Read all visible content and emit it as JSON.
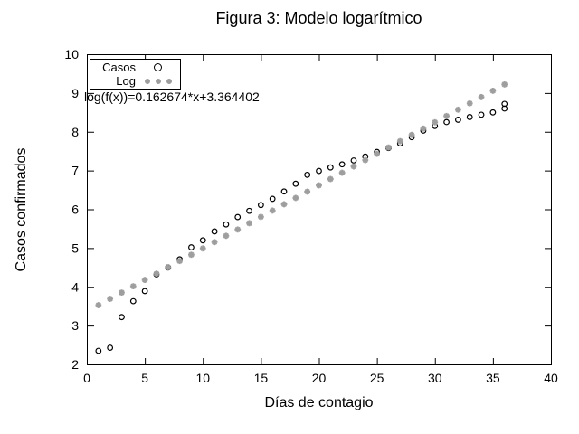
{
  "chart_data": {
    "type": "scatter",
    "title": "Figura 3: Modelo logarítmico",
    "xlabel": "Días de contagio",
    "ylabel": "Casos confirmados",
    "annotation": "log(f(x))=0.162674*x+3.364402",
    "xlim": [
      0,
      40
    ],
    "ylim": [
      2,
      10
    ],
    "x_ticks": [
      0,
      5,
      10,
      15,
      20,
      25,
      30,
      35,
      40
    ],
    "y_ticks": [
      2,
      3,
      4,
      5,
      6,
      7,
      8,
      9,
      10
    ],
    "grid": false,
    "legend_position": "top-left",
    "colors": {
      "casos": "#000000",
      "log": "#9e9e9e",
      "frame": "#000000"
    },
    "fit": {
      "slope": 0.162674,
      "intercept": 3.364402
    },
    "series": [
      {
        "name": "Casos",
        "marker": "circle",
        "color": "#000000",
        "points": [
          [
            1,
            2.35
          ],
          [
            2,
            2.43
          ],
          [
            3,
            3.22
          ],
          [
            4,
            3.63
          ],
          [
            5,
            3.89
          ],
          [
            6,
            4.32
          ],
          [
            7,
            4.5
          ],
          [
            8,
            4.71
          ],
          [
            9,
            5.02
          ],
          [
            10,
            5.2
          ],
          [
            11,
            5.43
          ],
          [
            12,
            5.61
          ],
          [
            13,
            5.8
          ],
          [
            14,
            5.96
          ],
          [
            15,
            6.11
          ],
          [
            16,
            6.27
          ],
          [
            17,
            6.46
          ],
          [
            18,
            6.66
          ],
          [
            19,
            6.89
          ],
          [
            20,
            6.99
          ],
          [
            21,
            7.08
          ],
          [
            22,
            7.16
          ],
          [
            23,
            7.26
          ],
          [
            24,
            7.36
          ],
          [
            25,
            7.48
          ],
          [
            26,
            7.58
          ],
          [
            27,
            7.7
          ],
          [
            28,
            7.86
          ],
          [
            29,
            8.03
          ],
          [
            30,
            8.15
          ],
          [
            31,
            8.25
          ],
          [
            32,
            8.31
          ],
          [
            33,
            8.38
          ],
          [
            34,
            8.44
          ],
          [
            35,
            8.5
          ],
          [
            36,
            8.6
          ],
          [
            36,
            8.72
          ]
        ]
      },
      {
        "name": "Log",
        "marker": "asterisk",
        "color": "#9e9e9e",
        "points": [
          [
            1,
            3.527
          ],
          [
            2,
            3.69
          ],
          [
            3,
            3.852
          ],
          [
            4,
            4.015
          ],
          [
            5,
            4.178
          ],
          [
            6,
            4.34
          ],
          [
            7,
            4.503
          ],
          [
            8,
            4.666
          ],
          [
            9,
            4.828
          ],
          [
            10,
            4.991
          ],
          [
            11,
            5.154
          ],
          [
            12,
            5.316
          ],
          [
            13,
            5.479
          ],
          [
            14,
            5.642
          ],
          [
            15,
            5.805
          ],
          [
            16,
            5.967
          ],
          [
            17,
            6.13
          ],
          [
            18,
            6.293
          ],
          [
            19,
            6.455
          ],
          [
            20,
            6.618
          ],
          [
            21,
            6.781
          ],
          [
            22,
            6.943
          ],
          [
            23,
            7.106
          ],
          [
            24,
            7.269
          ],
          [
            25,
            7.431
          ],
          [
            26,
            7.594
          ],
          [
            27,
            7.757
          ],
          [
            28,
            7.919
          ],
          [
            29,
            8.082
          ],
          [
            30,
            8.245
          ],
          [
            31,
            8.407
          ],
          [
            32,
            8.57
          ],
          [
            33,
            8.733
          ],
          [
            34,
            8.895
          ],
          [
            35,
            9.058
          ],
          [
            36,
            9.221
          ]
        ]
      }
    ]
  }
}
